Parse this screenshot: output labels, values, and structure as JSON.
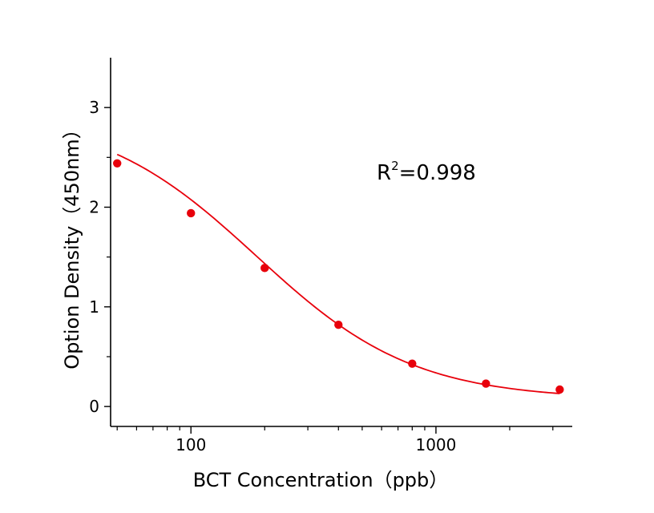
{
  "chart_data": {
    "type": "scatter",
    "xlabel": "BCT Concentration（ppb）",
    "ylabel": "Option Density（450nm）",
    "x_scale": "log",
    "xlim": [
      47,
      3600
    ],
    "ylim": [
      -0.2,
      3.5
    ],
    "x_ticks": [
      100,
      1000
    ],
    "x_tick_labels": [
      "100",
      "1000"
    ],
    "y_ticks": [
      0,
      1,
      2,
      3
    ],
    "y_tick_labels": [
      "0",
      "1",
      "2",
      "3"
    ],
    "grid": false,
    "annotation": {
      "base": "R",
      "sup": "2",
      "rest": "=0.998"
    },
    "series": [
      {
        "points": [
          {
            "x": 50,
            "y": 2.44
          },
          {
            "x": 100,
            "y": 1.94
          },
          {
            "x": 200,
            "y": 1.39
          },
          {
            "x": 400,
            "y": 0.82
          },
          {
            "x": 800,
            "y": 0.43
          },
          {
            "x": 1600,
            "y": 0.23
          },
          {
            "x": 3200,
            "y": 0.17
          }
        ],
        "fit": {
          "model": "4PL",
          "A": 2.95,
          "B": 1.35,
          "C": 185,
          "D": 0.07
        },
        "color": "#e8000b"
      }
    ]
  }
}
